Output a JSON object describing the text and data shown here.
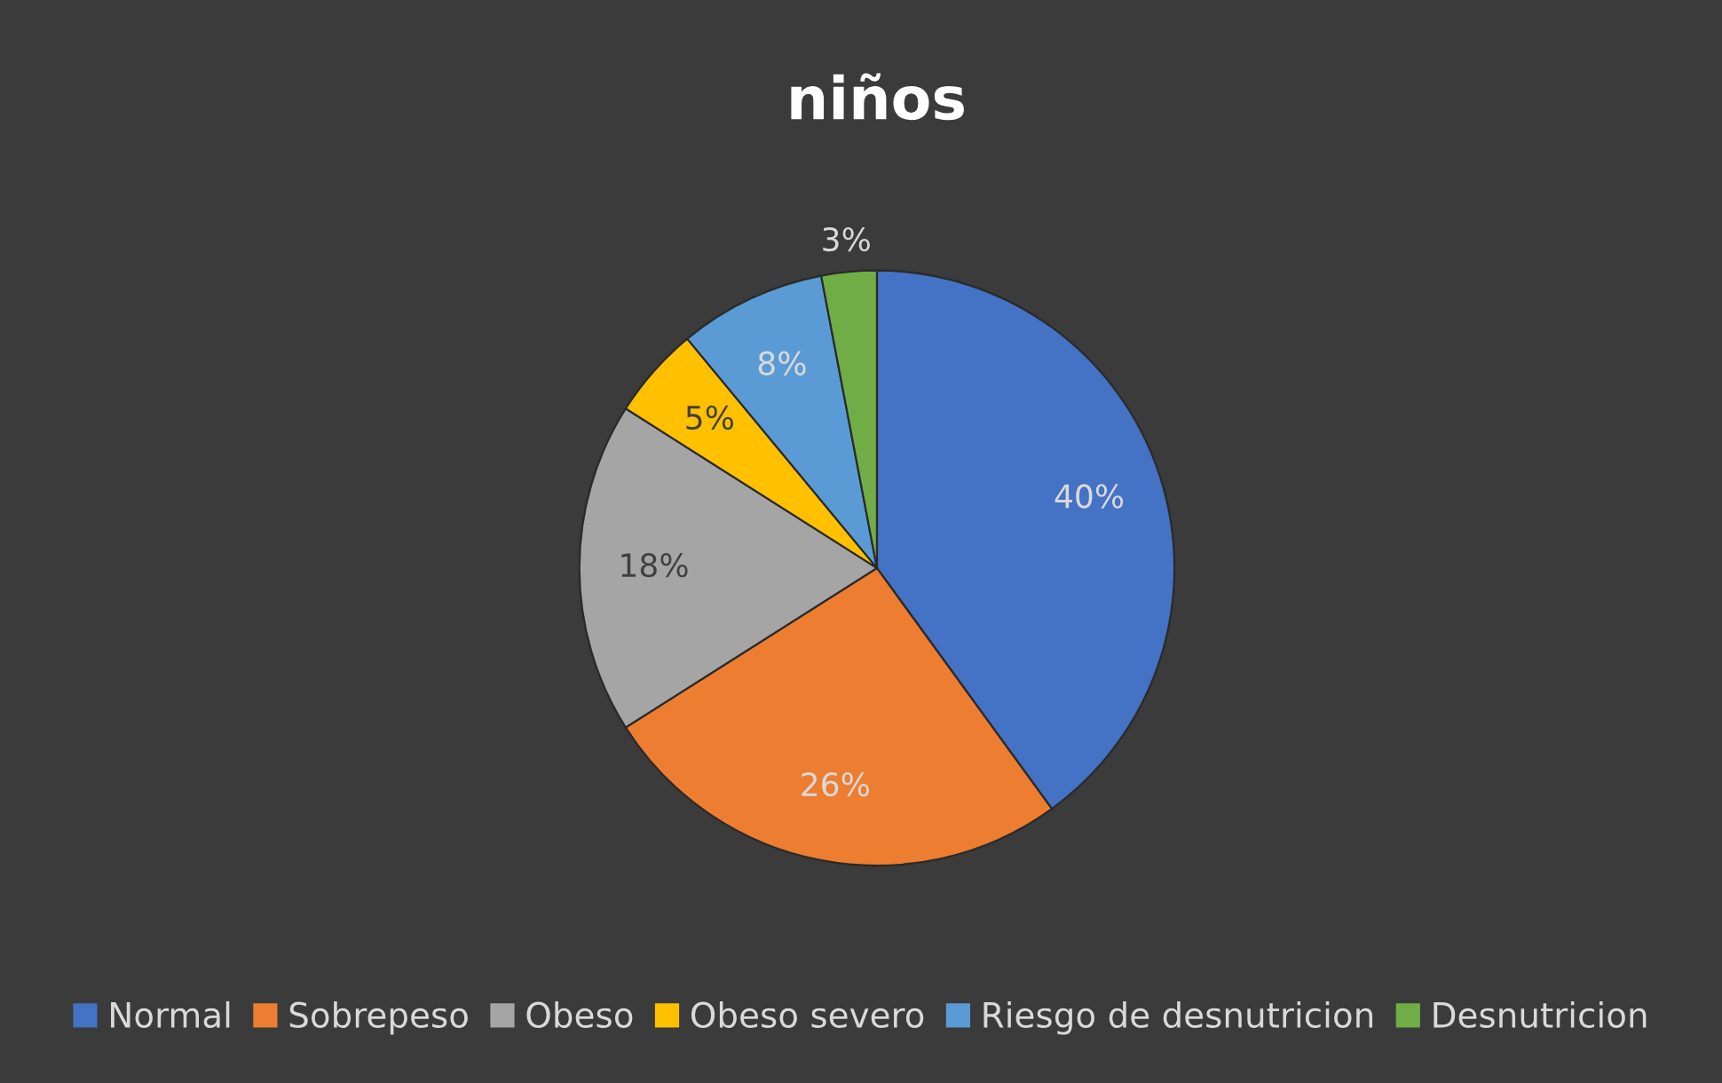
{
  "chart_data": {
    "type": "pie",
    "title": "niños",
    "categories": [
      "Normal",
      "Sobrepeso",
      "Obeso",
      "Obeso severo",
      "Riesgo de desnutricion",
      "Desnutricion"
    ],
    "values": [
      40,
      26,
      18,
      5,
      8,
      3
    ],
    "value_labels": [
      "40%",
      "26%",
      "18%",
      "5%",
      "8%",
      "3%"
    ],
    "colors": [
      "#4472c4",
      "#ed7d31",
      "#a5a5a5",
      "#ffc000",
      "#5b9bd5",
      "#70ad47"
    ],
    "legend": "bottom"
  }
}
